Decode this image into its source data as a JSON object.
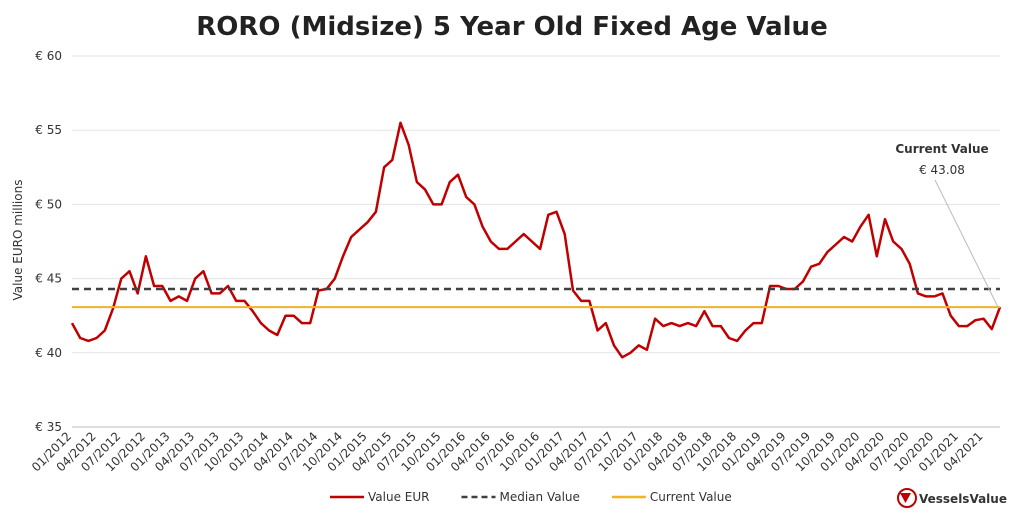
{
  "chart_data": {
    "type": "line",
    "title": "RORO (Midsize) 5 Year Old Fixed Age Value",
    "y_label": "Value EURO millions",
    "categories": [
      "01/2012",
      null,
      null,
      "04/2012",
      null,
      null,
      "07/2012",
      null,
      null,
      "10/2012",
      null,
      null,
      "01/2013",
      null,
      null,
      "04/2013",
      null,
      null,
      "07/2013",
      null,
      null,
      "10/2013",
      null,
      null,
      "01/2014",
      null,
      null,
      "04/2014",
      null,
      null,
      "07/2014",
      null,
      null,
      "10/2014",
      null,
      null,
      "01/2015",
      null,
      null,
      "04/2015",
      null,
      null,
      "07/2015",
      null,
      null,
      "10/2015",
      null,
      null,
      "01/2016",
      null,
      null,
      "04/2016",
      null,
      null,
      "07/2016",
      null,
      null,
      "10/2016",
      null,
      null,
      "01/2017",
      null,
      null,
      "04/2017",
      null,
      null,
      "07/2017",
      null,
      null,
      "10/2017",
      null,
      null,
      "01/2018",
      null,
      null,
      "04/2018",
      null,
      null,
      "07/2018",
      null,
      null,
      "10/2018",
      null,
      null,
      "01/2019",
      null,
      null,
      "04/2019",
      null,
      null,
      "07/2019",
      null,
      null,
      "10/2019",
      null,
      null,
      "01/2020",
      null,
      null,
      "04/2020",
      null,
      null,
      "07/2020",
      null,
      null,
      "10/2020",
      null,
      null,
      "01/2021",
      null,
      null,
      "04/2021",
      null,
      null
    ],
    "series": [
      {
        "name": "Value EUR",
        "color": "#c00000",
        "values": [
          42,
          41,
          40.8,
          41,
          41.5,
          43,
          45,
          45.5,
          44,
          46.5,
          44.5,
          44.5,
          43.5,
          43.8,
          43.5,
          45,
          45.5,
          44,
          44,
          44.5,
          43.5,
          43.5,
          42.8,
          42,
          41.5,
          41.2,
          42.5,
          42.5,
          42,
          42,
          44.2,
          44.3,
          45,
          46.5,
          47.8,
          48.3,
          48.8,
          49.5,
          52.5,
          53,
          55.5,
          54,
          51.5,
          51,
          50,
          50,
          51.5,
          52,
          50.5,
          50,
          48.5,
          47.5,
          47,
          47,
          47.5,
          48,
          47.5,
          47,
          49.3,
          49.5,
          48,
          44.2,
          43.5,
          43.5,
          41.5,
          42,
          40.5,
          39.7,
          40,
          40.5,
          40.2,
          42.3,
          41.8,
          42,
          41.8,
          42,
          41.8,
          42.8,
          41.8,
          41.8,
          41,
          40.8,
          41.5,
          42,
          42,
          44.5,
          44.5,
          44.3,
          44.3,
          44.8,
          45.8,
          46,
          46.8,
          47.3,
          47.8,
          47.5,
          48.5,
          49.3,
          46.5,
          49,
          47.5,
          47,
          46,
          44,
          43.8,
          43.8,
          44,
          42.5,
          41.8,
          41.8,
          42.2,
          42.3,
          41.6,
          43.08
        ]
      },
      {
        "name": "Median Value",
        "color": "#404040",
        "dashed": true,
        "value": 44.3
      },
      {
        "name": "Current Value",
        "color": "#f0b323",
        "value": 43.08,
        "value_label": "€ 43.08"
      }
    ],
    "annotation": "Current Value",
    "ylim": [
      35,
      60
    ],
    "yticks": [
      {
        "value": 35,
        "label": "€ 35"
      },
      {
        "value": 40,
        "label": "€ 40"
      },
      {
        "value": 45,
        "label": "€ 45"
      },
      {
        "value": 50,
        "label": "€ 50"
      },
      {
        "value": 55,
        "label": "€ 55"
      },
      {
        "value": 60,
        "label": "€ 60"
      }
    ],
    "grid": true,
    "legend": "bottom",
    "brand": "VesselsValue"
  }
}
